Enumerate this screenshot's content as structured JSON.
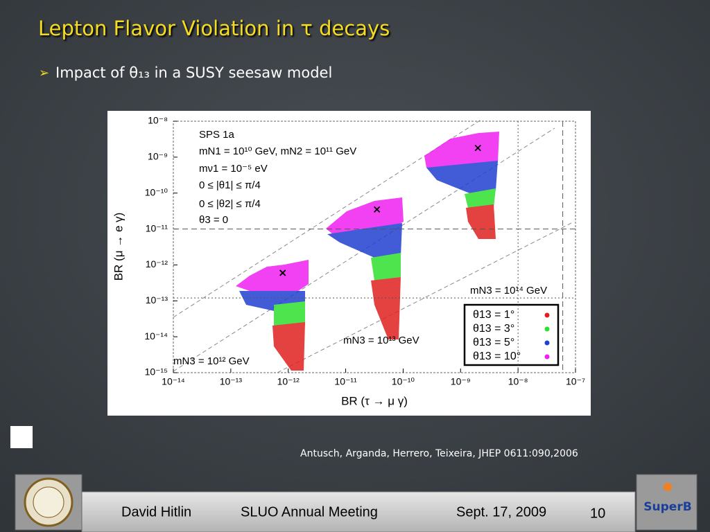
{
  "slide": {
    "title": "Lepton Flavor Violation in τ decays",
    "bullet": "Impact of θ₁₃  in a SUSY seesaw model",
    "citation": "Antusch, Arganda, Herrero, Teixeira,  JHEP 0611:090,2006",
    "footer": {
      "author": "David Hitlin",
      "event": "SLUO Annual Meeting",
      "date": "Sept. 17, 2009",
      "page": "10"
    },
    "logo_right": "SuperB"
  },
  "chart_data": {
    "type": "scatter",
    "xlabel": "BR (τ → μ γ)",
    "ylabel": "BR (μ → e γ)",
    "xscale": "log",
    "yscale": "log",
    "xlim": [
      1e-14,
      1e-07
    ],
    "ylim": [
      1e-15,
      1e-08
    ],
    "xticks": [
      {
        "value": 1e-14,
        "label": "10⁻¹⁴"
      },
      {
        "value": 1e-13,
        "label": "10⁻¹³"
      },
      {
        "value": 1e-12,
        "label": "10⁻¹²"
      },
      {
        "value": 1e-11,
        "label": "10⁻¹¹"
      },
      {
        "value": 1e-10,
        "label": "10⁻¹⁰"
      },
      {
        "value": 1e-09,
        "label": "10⁻⁹"
      },
      {
        "value": 1e-08,
        "label": "10⁻⁸"
      },
      {
        "value": 1e-07,
        "label": "10⁻⁷"
      }
    ],
    "yticks": [
      {
        "value": 1e-15,
        "label": "10⁻¹⁵"
      },
      {
        "value": 1e-14,
        "label": "10⁻¹⁴"
      },
      {
        "value": 1e-13,
        "label": "10⁻¹³"
      },
      {
        "value": 1e-12,
        "label": "10⁻¹²"
      },
      {
        "value": 1e-11,
        "label": "10⁻¹¹"
      },
      {
        "value": 1e-10,
        "label": "10⁻¹⁰"
      },
      {
        "value": 1e-09,
        "label": "10⁻⁹"
      },
      {
        "value": 1e-08,
        "label": "10⁻⁸"
      }
    ],
    "annotations": [
      "SPS 1a",
      "mN1 = 10¹⁰ GeV, mN2 = 10¹¹ GeV",
      "mν1 = 10⁻⁵ eV",
      "0 ≤ |θ1| ≤ π/4",
      "0 ≤ |θ2| ≤ π/4",
      "θ3 = 0",
      "mN3 = 10¹² GeV",
      "mN3 = 10¹³ GeV",
      "mN3 = 10¹⁴ GeV"
    ],
    "markers": {
      "x": [
        8e-13,
        3.5e-11,
        2e-09
      ],
      "y": [
        6e-13,
        3.5e-11,
        1.8e-09
      ],
      "color": "#000000"
    },
    "hlines": [
      {
        "value": 1e-11,
        "style": "dashed"
      },
      {
        "value": 1.2e-13,
        "style": "dotted"
      }
    ],
    "vlines": [
      {
        "value": 1e-08,
        "style": "dotted"
      },
      {
        "value": 6e-08,
        "style": "dashed"
      }
    ],
    "legend": [
      {
        "label": "θ13 =   1°",
        "color": "#e02020"
      },
      {
        "label": "θ13 =   3°",
        "color": "#30e030"
      },
      {
        "label": "θ13 =   5°",
        "color": "#2040d0"
      },
      {
        "label": "θ13 = 10°",
        "color": "#f020f0"
      }
    ]
  }
}
